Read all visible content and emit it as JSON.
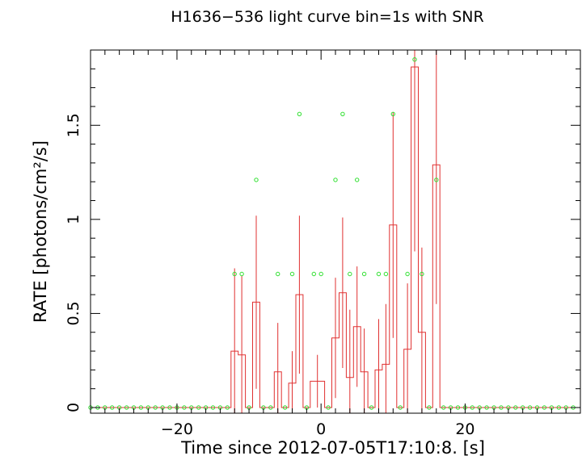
{
  "chart_data": {
    "type": "line",
    "title": "H1636−536 light curve bin=1s with SNR",
    "xlabel": "Time since 2012-07-05T17:10:8. [s]",
    "ylabel": "RATE [photons/cm²/s]",
    "xlim": [
      -32,
      36
    ],
    "ylim": [
      -0.03,
      1.9
    ],
    "x_ticks": [
      {
        "value": -20,
        "label": "−20"
      },
      {
        "value": 0,
        "label": "0"
      },
      {
        "value": 20,
        "label": "20"
      }
    ],
    "y_ticks": [
      {
        "value": 0,
        "label": "0"
      },
      {
        "value": 0.5,
        "label": "0.5"
      },
      {
        "value": 1,
        "label": "1"
      },
      {
        "value": 1.5,
        "label": "1.5"
      }
    ],
    "colors": {
      "rate": "#e03030",
      "snr": "#30e030"
    },
    "series": [
      {
        "style": "step",
        "color": "#e03030",
        "bins": [
          {
            "x0": -32,
            "x1": -12.5,
            "y": 0,
            "err": 0
          },
          {
            "x0": -12.5,
            "x1": -11.5,
            "y": 0.3,
            "err": 0.44
          },
          {
            "x0": -11.5,
            "x1": -10.5,
            "y": 0.28,
            "err": 0.42
          },
          {
            "x0": -10.5,
            "x1": -9.5,
            "y": 0,
            "err": 0
          },
          {
            "x0": -9.5,
            "x1": -8.5,
            "y": 0.56,
            "err": 0.46
          },
          {
            "x0": -8.5,
            "x1": -6.5,
            "y": 0,
            "err": 0
          },
          {
            "x0": -6.5,
            "x1": -5.5,
            "y": 0.19,
            "err": 0.26
          },
          {
            "x0": -5.5,
            "x1": -4.5,
            "y": 0,
            "err": 0
          },
          {
            "x0": -4.5,
            "x1": -3.5,
            "y": 0.13,
            "err": 0.17
          },
          {
            "x0": -3.5,
            "x1": -2.5,
            "y": 0.6,
            "err": 0.42
          },
          {
            "x0": -2.5,
            "x1": -1.5,
            "y": 0,
            "err": 0
          },
          {
            "x0": -1.5,
            "x1": 0.5,
            "y": 0.14,
            "err": 0.14
          },
          {
            "x0": 0.5,
            "x1": 1.5,
            "y": 0,
            "err": 0
          },
          {
            "x0": 1.5,
            "x1": 2.5,
            "y": 0.37,
            "err": 0.32
          },
          {
            "x0": 2.5,
            "x1": 3.5,
            "y": 0.61,
            "err": 0.4
          },
          {
            "x0": 3.5,
            "x1": 4.5,
            "y": 0.16,
            "err": 0.36
          },
          {
            "x0": 4.5,
            "x1": 5.5,
            "y": 0.43,
            "err": 0.32
          },
          {
            "x0": 5.5,
            "x1": 6.5,
            "y": 0.19,
            "err": 0.23
          },
          {
            "x0": 6.5,
            "x1": 7.5,
            "y": 0,
            "err": 0
          },
          {
            "x0": 7.5,
            "x1": 8.5,
            "y": 0.2,
            "err": 0.27
          },
          {
            "x0": 8.5,
            "x1": 9.5,
            "y": 0.23,
            "err": 0.32
          },
          {
            "x0": 9.5,
            "x1": 10.5,
            "y": 0.97,
            "err": 0.6
          },
          {
            "x0": 10.5,
            "x1": 11.5,
            "y": 0,
            "err": 0
          },
          {
            "x0": 11.5,
            "x1": 12.5,
            "y": 0.31,
            "err": 0.35
          },
          {
            "x0": 12.5,
            "x1": 13.5,
            "y": 1.81,
            "err": 0.98
          },
          {
            "x0": 13.5,
            "x1": 14.5,
            "y": 0.4,
            "err": 0.45
          },
          {
            "x0": 14.5,
            "x1": 15.5,
            "y": 0,
            "err": 0
          },
          {
            "x0": 15.5,
            "x1": 16.5,
            "y": 1.29,
            "err": 0.74
          },
          {
            "x0": 16.5,
            "x1": 36,
            "y": 0,
            "err": 0
          }
        ]
      },
      {
        "style": "scatter",
        "color": "#30e030",
        "points": [
          [
            -32,
            0
          ],
          [
            -31,
            0
          ],
          [
            -30,
            0
          ],
          [
            -29,
            0
          ],
          [
            -28,
            0
          ],
          [
            -27,
            0
          ],
          [
            -26,
            0
          ],
          [
            -25,
            0
          ],
          [
            -24,
            0
          ],
          [
            -23,
            0
          ],
          [
            -22,
            0
          ],
          [
            -21,
            0
          ],
          [
            -20,
            0
          ],
          [
            -19,
            0
          ],
          [
            -18,
            0
          ],
          [
            -17,
            0
          ],
          [
            -16,
            0
          ],
          [
            -15,
            0
          ],
          [
            -14,
            0
          ],
          [
            -13,
            0
          ],
          [
            -12,
            0.71
          ],
          [
            -11,
            0.71
          ],
          [
            -10,
            0
          ],
          [
            -9,
            1.21
          ],
          [
            -8,
            0
          ],
          [
            -7,
            0
          ],
          [
            -6,
            0.71
          ],
          [
            -5,
            0
          ],
          [
            -4,
            0.71
          ],
          [
            -3,
            1.56
          ],
          [
            -2,
            0
          ],
          [
            -1,
            0.71
          ],
          [
            0,
            0.71
          ],
          [
            1,
            0
          ],
          [
            2,
            1.21
          ],
          [
            3,
            1.56
          ],
          [
            4,
            0.71
          ],
          [
            5,
            1.21
          ],
          [
            6,
            0.71
          ],
          [
            7,
            0
          ],
          [
            8,
            0.71
          ],
          [
            9,
            0.71
          ],
          [
            10,
            1.56
          ],
          [
            11,
            0
          ],
          [
            12,
            0.71
          ],
          [
            13,
            1.85
          ],
          [
            14,
            0.71
          ],
          [
            15,
            0
          ],
          [
            16,
            1.21
          ],
          [
            17,
            0
          ],
          [
            18,
            0
          ],
          [
            19,
            0
          ],
          [
            20,
            0
          ],
          [
            21,
            0
          ],
          [
            22,
            0
          ],
          [
            23,
            0
          ],
          [
            24,
            0
          ],
          [
            25,
            0
          ],
          [
            26,
            0
          ],
          [
            27,
            0
          ],
          [
            28,
            0
          ],
          [
            29,
            0
          ],
          [
            30,
            0
          ],
          [
            31,
            0
          ],
          [
            32,
            0
          ],
          [
            33,
            0
          ],
          [
            34,
            0
          ],
          [
            35,
            0
          ]
        ]
      }
    ]
  }
}
